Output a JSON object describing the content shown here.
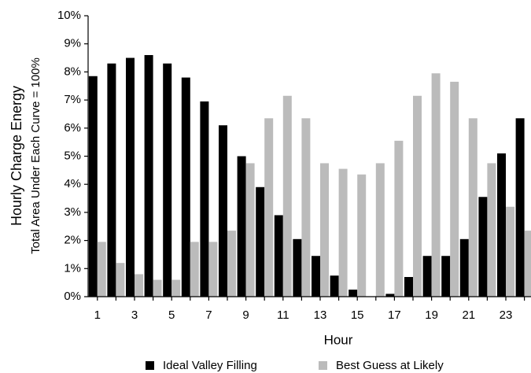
{
  "chart_data": {
    "type": "bar",
    "y_label": "Hourly Charge Energy",
    "y_sublabel": "Total Area Under Each Curve = 100%",
    "x_label": "Hour",
    "categories": [
      "1",
      null,
      "3",
      null,
      "5",
      null,
      "7",
      null,
      "9",
      null,
      "11",
      null,
      "13",
      null,
      "15",
      null,
      "17",
      null,
      "19",
      null,
      "21",
      null,
      "23",
      null
    ],
    "series": [
      {
        "name": "Ideal Valley Filling",
        "color": "#000000",
        "values": [
          7.85,
          8.3,
          8.5,
          8.6,
          8.3,
          7.8,
          6.95,
          6.1,
          5.0,
          3.9,
          2.9,
          2.05,
          1.45,
          0.75,
          0.25,
          0,
          0.1,
          0.7,
          1.45,
          1.45,
          2.05,
          3.55,
          5.1,
          6.35
        ]
      },
      {
        "name": "Best Guess at Likely",
        "color": "#bbbbbb",
        "values": [
          1.95,
          1.2,
          0.8,
          0.6,
          0.6,
          1.95,
          1.95,
          2.35,
          4.75,
          6.35,
          7.15,
          6.35,
          4.75,
          4.55,
          4.35,
          4.75,
          5.55,
          7.15,
          7.95,
          7.65,
          6.35,
          4.75,
          3.2,
          2.35
        ]
      }
    ],
    "ylim": [
      0,
      10
    ],
    "yticks": [
      {
        "value": 0,
        "label": "0%"
      },
      {
        "value": 1,
        "label": "1%"
      },
      {
        "value": 2,
        "label": "2%"
      },
      {
        "value": 3,
        "label": "3%"
      },
      {
        "value": 4,
        "label": "4%"
      },
      {
        "value": 5,
        "label": "5%"
      },
      {
        "value": 6,
        "label": "6%"
      },
      {
        "value": 7,
        "label": "7%"
      },
      {
        "value": 8,
        "label": "8%"
      },
      {
        "value": 9,
        "label": "9%"
      },
      {
        "value": 10,
        "label": "10%"
      }
    ],
    "grid": false,
    "legend": "bottom"
  }
}
